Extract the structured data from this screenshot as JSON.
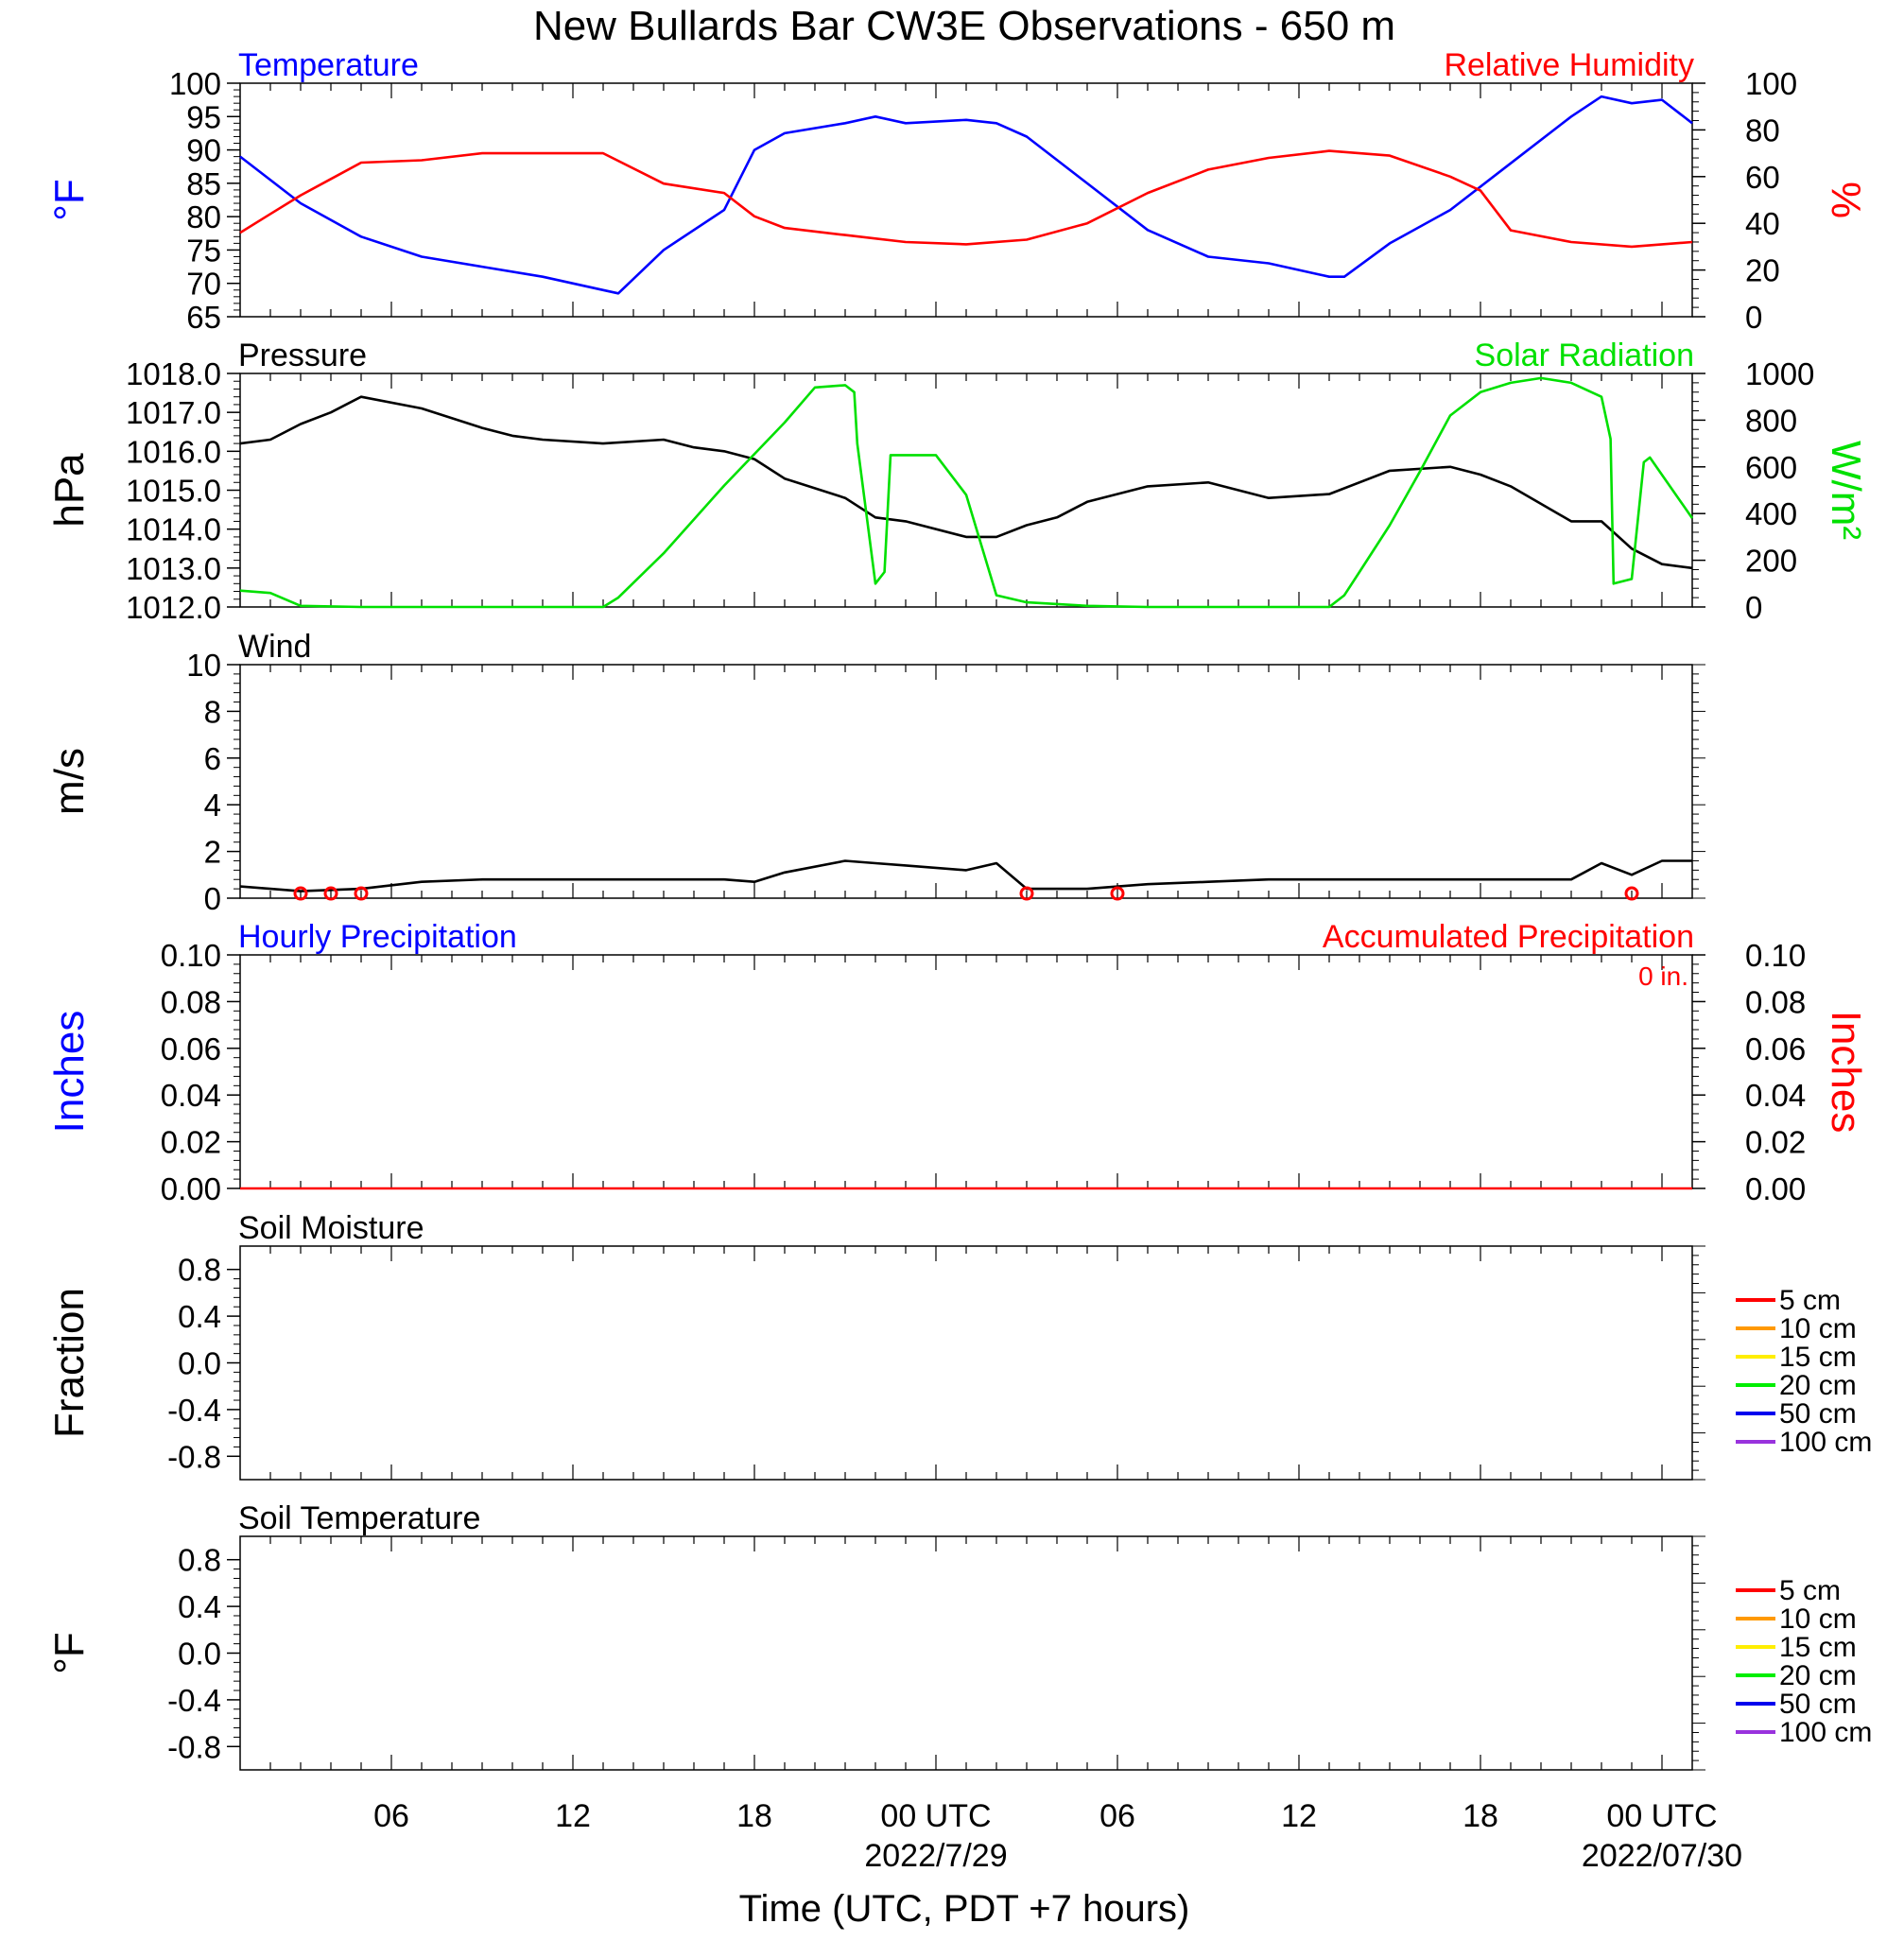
{
  "title": "New Bullards Bar CW3E Observations - 650 m",
  "xaxis": {
    "label": "Time (UTC, PDT +7 hours)",
    "ticks": [
      {
        "hour": 6,
        "label": "06"
      },
      {
        "hour": 12,
        "label": "12"
      },
      {
        "hour": 18,
        "label": "18"
      },
      {
        "hour": 24,
        "label": "00 UTC",
        "date": "2022/7/29"
      },
      {
        "hour": 30,
        "label": "06"
      },
      {
        "hour": 36,
        "label": "12"
      },
      {
        "hour": 42,
        "label": "18"
      },
      {
        "hour": 48,
        "label": "00 UTC",
        "date": "2022/07/30"
      }
    ],
    "range_hours": [
      1,
      49
    ]
  },
  "colors": {
    "blue": "#0000ff",
    "red": "#ff0000",
    "green": "#00e000",
    "black": "#000000"
  },
  "chart_data": [
    {
      "type": "line",
      "left_title": "Temperature",
      "right_title": "Relative Humidity",
      "ylabel_left": "°F",
      "ylabel_right": "%",
      "ylim_left": [
        65,
        100
      ],
      "yticks_left": [
        "65",
        "70",
        "75",
        "80",
        "85",
        "90",
        "95",
        "100"
      ],
      "ylim_right": [
        0,
        100
      ],
      "yticks_right": [
        "0",
        "20",
        "40",
        "60",
        "80",
        "100"
      ],
      "series": [
        {
          "color": "#0000ff",
          "axis": "left",
          "x": [
            1,
            3,
            5,
            7,
            9,
            11,
            13,
            13.5,
            15,
            17,
            18,
            19,
            21,
            22,
            23,
            25,
            26,
            27,
            29,
            31,
            33,
            35,
            37,
            37.5,
            39,
            41,
            43,
            45,
            46,
            47,
            48,
            49
          ],
          "values": [
            89,
            82,
            77,
            74,
            72.5,
            71,
            69,
            68.5,
            75,
            81,
            90,
            92.5,
            94,
            95,
            94,
            94.5,
            94,
            92,
            85,
            78,
            74,
            73,
            71,
            71,
            76,
            81,
            88,
            95,
            98,
            97,
            97.5,
            94
          ]
        },
        {
          "color": "#ff0000",
          "axis": "right",
          "x": [
            1,
            2,
            3,
            4,
            5,
            7,
            9,
            11,
            13,
            15,
            17,
            18,
            19,
            21,
            23,
            25,
            27,
            29,
            31,
            33,
            35,
            37,
            39,
            41,
            42,
            43,
            45,
            47,
            49
          ],
          "values": [
            36,
            44,
            52,
            59,
            66,
            67,
            70,
            70,
            70,
            57,
            53,
            43,
            38,
            35,
            32,
            31,
            33,
            40,
            53,
            63,
            68,
            71,
            69,
            60,
            54,
            37,
            32,
            30,
            32
          ]
        }
      ]
    },
    {
      "type": "line",
      "left_title": "Pressure",
      "right_title": "Solar Radiation",
      "ylabel_left": "hPa",
      "ylabel_right": "W/m²",
      "ylim_left": [
        1012,
        1018
      ],
      "yticks_left": [
        "1012.0",
        "1013.0",
        "1014.0",
        "1015.0",
        "1016.0",
        "1017.0",
        "1018.0"
      ],
      "ylim_right": [
        0,
        1000
      ],
      "yticks_right": [
        "0",
        "200",
        "400",
        "600",
        "800",
        "1000"
      ],
      "series": [
        {
          "color": "#000000",
          "axis": "left",
          "x": [
            1,
            2,
            3,
            4,
            5,
            7,
            9,
            10,
            11,
            13,
            15,
            16,
            17,
            18,
            19,
            21,
            22,
            23,
            25,
            26,
            27,
            28,
            29,
            31,
            33,
            35,
            37,
            39,
            41,
            42,
            43,
            45,
            46,
            47,
            48,
            49
          ],
          "values": [
            1016.2,
            1016.3,
            1016.7,
            1017.0,
            1017.4,
            1017.1,
            1016.6,
            1016.4,
            1016.3,
            1016.2,
            1016.3,
            1016.1,
            1016.0,
            1015.8,
            1015.3,
            1014.8,
            1014.3,
            1014.2,
            1013.8,
            1013.8,
            1014.1,
            1014.3,
            1014.7,
            1015.1,
            1015.2,
            1014.8,
            1014.9,
            1015.5,
            1015.6,
            1015.4,
            1015.1,
            1014.2,
            1014.2,
            1013.5,
            1013.1,
            1013.0
          ]
        },
        {
          "color": "#00e000",
          "axis": "right",
          "x": [
            1,
            2,
            3,
            5,
            13,
            13.5,
            15,
            17,
            19,
            20,
            21,
            21.3,
            21.4,
            22,
            22.3,
            22.5,
            24,
            25,
            26,
            27,
            29,
            31,
            33,
            35,
            37,
            37.5,
            38,
            39,
            40,
            41,
            42,
            43,
            44,
            45,
            46,
            46.3,
            46.4,
            47,
            47.4,
            47.6,
            49
          ],
          "values": [
            70,
            60,
            5,
            0,
            0,
            40,
            230,
            520,
            790,
            940,
            950,
            920,
            700,
            100,
            150,
            650,
            650,
            480,
            50,
            20,
            5,
            0,
            0,
            0,
            0,
            50,
            150,
            350,
            580,
            820,
            920,
            960,
            980,
            960,
            900,
            720,
            100,
            120,
            620,
            640,
            380
          ]
        }
      ]
    },
    {
      "type": "line",
      "left_title": "Wind",
      "ylabel_left": "m/s",
      "ylim_left": [
        0,
        10
      ],
      "yticks_left": [
        "0",
        "2",
        "4",
        "6",
        "8",
        "10"
      ],
      "series": [
        {
          "color": "#000000",
          "axis": "left",
          "x": [
            1,
            3,
            5,
            7,
            9,
            11,
            13,
            15,
            17,
            18,
            19,
            21,
            22,
            23,
            25,
            26,
            27,
            29,
            31,
            33,
            35,
            37,
            39,
            41,
            43,
            45,
            46,
            47,
            48,
            49
          ],
          "values": [
            0.5,
            0.3,
            0.4,
            0.7,
            0.8,
            0.8,
            0.8,
            0.8,
            0.8,
            0.7,
            1.1,
            1.6,
            1.5,
            1.4,
            1.2,
            1.5,
            0.4,
            0.4,
            0.6,
            0.7,
            0.8,
            0.8,
            0.8,
            0.8,
            0.8,
            0.8,
            1.5,
            1.0,
            1.6,
            1.6
          ]
        }
      ],
      "calm_markers": [
        3,
        4,
        5,
        27,
        30,
        47
      ]
    },
    {
      "type": "line",
      "left_title": "Hourly Precipitation",
      "right_title": "Accumulated Precipitation",
      "annotation": "0 in.",
      "ylabel_left": "Inches",
      "ylabel_right": "Inches",
      "ylim_left": [
        0,
        0.1
      ],
      "yticks_left": [
        "0.00",
        "0.02",
        "0.04",
        "0.06",
        "0.08",
        "0.10"
      ],
      "ylim_right": [
        0,
        0.1
      ],
      "yticks_right": [
        "0.00",
        "0.02",
        "0.04",
        "0.06",
        "0.08",
        "0.10"
      ],
      "series": [
        {
          "color": "#ff0000",
          "axis": "right",
          "x": [
            1,
            49
          ],
          "values": [
            0,
            0
          ]
        }
      ]
    },
    {
      "type": "line",
      "left_title": "Soil Moisture",
      "ylabel_left": "Fraction",
      "ylim_left": [
        -1,
        1
      ],
      "yticks_left": [
        "-0.8",
        "-0.4",
        "0.0",
        "0.4",
        "0.8"
      ],
      "legend": [
        {
          "name": "5 cm",
          "color": "#ff0000"
        },
        {
          "name": "10 cm",
          "color": "#ff9900"
        },
        {
          "name": "15 cm",
          "color": "#ffee00"
        },
        {
          "name": "20 cm",
          "color": "#00ee00"
        },
        {
          "name": "50 cm",
          "color": "#0000ee"
        },
        {
          "name": "100 cm",
          "color": "#9933dd"
        }
      ],
      "series": []
    },
    {
      "type": "line",
      "left_title": "Soil Temperature",
      "ylabel_left": "°F",
      "ylim_left": [
        -1,
        1
      ],
      "yticks_left": [
        "-0.8",
        "-0.4",
        "0.0",
        "0.4",
        "0.8"
      ],
      "legend": [
        {
          "name": "5 cm",
          "color": "#ff0000"
        },
        {
          "name": "10 cm",
          "color": "#ff9900"
        },
        {
          "name": "15 cm",
          "color": "#ffee00"
        },
        {
          "name": "20 cm",
          "color": "#00ee00"
        },
        {
          "name": "50 cm",
          "color": "#0000ee"
        },
        {
          "name": "100 cm",
          "color": "#9933dd"
        }
      ],
      "series": []
    }
  ]
}
